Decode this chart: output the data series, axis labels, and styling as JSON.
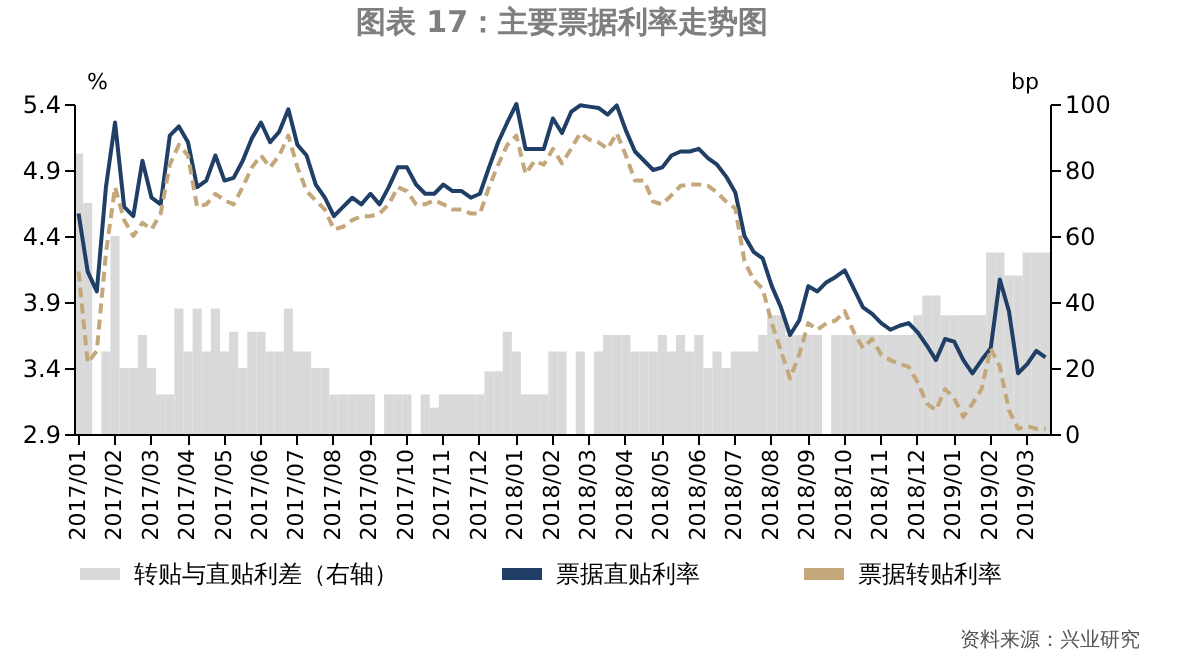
{
  "chart_data": {
    "type": "line",
    "title": "图表 17：主要票据利率走势图",
    "ylabel": "%",
    "y2label": "bp",
    "annotations": [
      "资料来源：兴业研究"
    ],
    "categories": [
      "2017/01",
      null,
      null,
      null,
      "2017/02",
      null,
      null,
      null,
      "2017/03",
      null,
      null,
      null,
      "2017/04",
      null,
      null,
      null,
      "2017/05",
      null,
      null,
      null,
      "2017/06",
      null,
      null,
      null,
      "2017/07",
      null,
      null,
      null,
      "2017/08",
      null,
      null,
      null,
      "2017/09",
      null,
      null,
      null,
      "2017/10",
      null,
      null,
      null,
      "2017/11",
      null,
      null,
      null,
      "2017/12",
      null,
      null,
      null,
      "2018/01",
      null,
      null,
      null,
      "2018/02",
      null,
      null,
      null,
      "2018/03",
      null,
      null,
      null,
      "2018/04",
      null,
      null,
      null,
      "2018/05",
      null,
      null,
      null,
      "2018/06",
      null,
      null,
      null,
      "2018/07",
      null,
      null,
      null,
      "2018/08",
      null,
      null,
      null,
      "2018/09",
      null,
      null,
      null,
      "2018/10",
      null,
      null,
      null,
      "2018/11",
      null,
      null,
      null,
      "2018/12",
      null,
      null,
      null,
      "2019/01",
      null,
      null,
      null,
      "2019/02",
      null,
      null,
      null,
      "2019/03",
      null,
      null
    ],
    "series": [
      {
        "name": "转贴与直贴利差（右轴）",
        "type": "bar",
        "axis": "y2",
        "color": "#d9d9d9",
        "values": [
          85,
          70,
          0,
          25,
          60,
          20,
          20,
          30,
          20,
          12,
          12,
          38,
          25,
          38,
          25,
          38,
          25,
          31,
          20,
          31,
          31,
          25,
          25,
          38,
          25,
          25,
          20,
          20,
          12,
          12,
          12,
          12,
          12,
          0,
          12,
          12,
          12,
          0,
          12,
          8,
          12,
          12,
          12,
          12,
          12,
          19,
          19,
          31,
          25,
          12,
          12,
          12,
          25,
          25,
          0,
          25,
          0,
          25,
          30,
          30,
          30,
          25,
          25,
          25,
          30,
          25,
          30,
          25,
          30,
          20,
          25,
          20,
          25,
          25,
          25,
          30,
          36,
          36,
          30,
          30,
          30,
          30,
          0,
          30,
          30,
          30,
          30,
          30,
          30,
          30,
          30,
          30,
          36,
          42,
          42,
          36,
          36,
          36,
          36,
          36,
          55,
          55,
          48,
          48,
          55,
          55,
          55
        ]
      },
      {
        "name": "票据直贴利率",
        "type": "line",
        "color": "#1f3f66",
        "line_style": "solid",
        "values": [
          4.57,
          4.13,
          3.98,
          4.77,
          5.26,
          4.62,
          4.55,
          4.97,
          4.69,
          4.64,
          5.16,
          5.23,
          5.11,
          4.77,
          4.82,
          5.01,
          4.82,
          4.84,
          4.97,
          5.14,
          5.26,
          5.11,
          5.19,
          5.36,
          5.09,
          5.01,
          4.79,
          4.69,
          4.55,
          4.62,
          4.69,
          4.64,
          4.72,
          4.64,
          4.77,
          4.92,
          4.92,
          4.79,
          4.72,
          4.72,
          4.79,
          4.74,
          4.74,
          4.69,
          4.72,
          4.92,
          5.11,
          5.26,
          5.4,
          5.06,
          5.06,
          5.06,
          5.29,
          5.18,
          5.34,
          5.39,
          5.38,
          5.37,
          5.32,
          5.39,
          5.2,
          5.04,
          4.97,
          4.9,
          4.92,
          5.01,
          5.04,
          5.04,
          5.06,
          4.99,
          4.94,
          4.85,
          4.73,
          4.4,
          4.28,
          4.23,
          4.02,
          3.86,
          3.65,
          3.76,
          4.02,
          3.98,
          4.05,
          4.09,
          4.14,
          4.0,
          3.86,
          3.81,
          3.74,
          3.69,
          3.72,
          3.74,
          3.67,
          3.57,
          3.46,
          3.62,
          3.6,
          3.46,
          3.36,
          3.46,
          3.55,
          4.07,
          3.83,
          3.36,
          3.43,
          3.53,
          3.48
        ]
      },
      {
        "name": "票据转贴利率",
        "type": "line",
        "color": "#c4a77a",
        "line_style": "dashed",
        "values": [
          4.13,
          3.44,
          3.53,
          4.27,
          4.77,
          4.52,
          4.4,
          4.5,
          4.45,
          4.57,
          4.94,
          5.09,
          5.01,
          4.62,
          4.64,
          4.72,
          4.67,
          4.64,
          4.77,
          4.92,
          5.01,
          4.92,
          5.01,
          5.16,
          4.92,
          4.74,
          4.67,
          4.6,
          4.45,
          4.47,
          4.52,
          4.55,
          4.55,
          4.57,
          4.64,
          4.77,
          4.74,
          4.64,
          4.64,
          4.67,
          4.64,
          4.6,
          4.6,
          4.57,
          4.57,
          4.77,
          4.94,
          5.09,
          5.16,
          4.87,
          4.97,
          4.94,
          5.06,
          4.95,
          5.06,
          5.18,
          5.13,
          5.11,
          5.06,
          5.18,
          5.01,
          4.82,
          4.82,
          4.66,
          4.64,
          4.71,
          4.78,
          4.79,
          4.79,
          4.78,
          4.73,
          4.66,
          4.61,
          4.21,
          4.07,
          4.0,
          3.74,
          3.53,
          3.32,
          3.5,
          3.74,
          3.69,
          3.74,
          3.76,
          3.83,
          3.67,
          3.55,
          3.62,
          3.5,
          3.46,
          3.43,
          3.41,
          3.29,
          3.13,
          3.08,
          3.24,
          3.17,
          3.03,
          3.13,
          3.24,
          3.55,
          3.41,
          3.08,
          2.94,
          2.96,
          2.94,
          2.94
        ]
      }
    ],
    "ylim": [
      2.9,
      5.4
    ],
    "yticks": [
      2.9,
      3.4,
      3.9,
      4.4,
      4.9,
      5.4
    ],
    "y2lim": [
      0,
      100
    ],
    "y2ticks": [
      0,
      20,
      40,
      60,
      80,
      100
    ],
    "legend": "bottom"
  }
}
